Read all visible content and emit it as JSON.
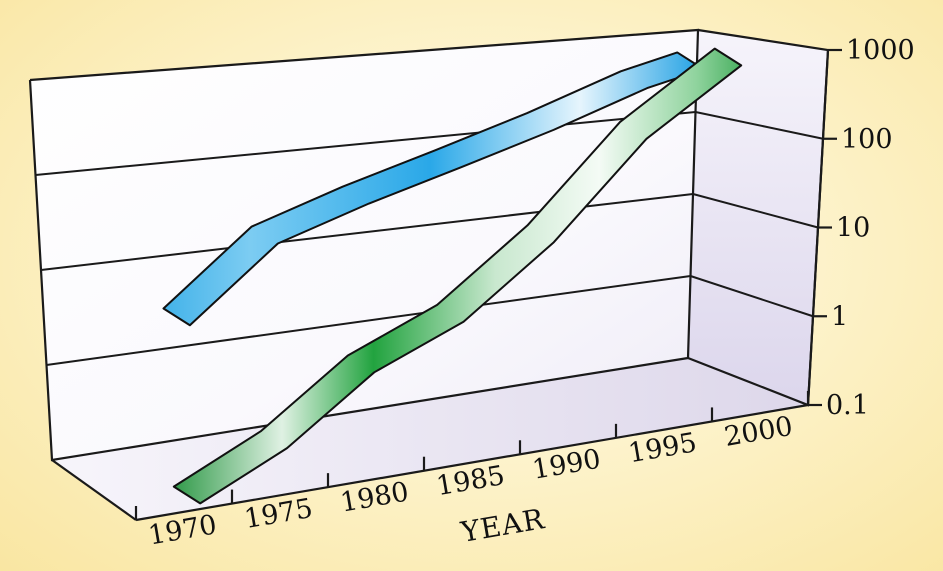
{
  "chart_data": {
    "type": "line",
    "style": "3d-ribbon",
    "xlabel": "YEAR",
    "ylabel": "",
    "title": "",
    "x_ticks": [
      "1970",
      "1975",
      "1980",
      "1985",
      "1990",
      "1995",
      "2000"
    ],
    "y_ticks": [
      "0.1",
      "1",
      "10",
      "100",
      "1000"
    ],
    "y_scale": "log",
    "ylim": [
      0.1,
      1000
    ],
    "xlim": [
      1970,
      2000
    ],
    "grid": true,
    "legend": "none",
    "series": [
      {
        "color": "#1e9ee0",
        "x": [
          1970,
          1975,
          1980,
          1985,
          1990,
          1995,
          1998
        ],
        "values": [
          7.5,
          40,
          80,
          150,
          300,
          700,
          1000
        ]
      },
      {
        "color": "#1f9a3c",
        "x": [
          1970,
          1975,
          1980,
          1985,
          1990,
          1995,
          2000
        ],
        "values": [
          0.1,
          0.25,
          1.1,
          2.7,
          15,
          175,
          1000
        ]
      }
    ]
  }
}
